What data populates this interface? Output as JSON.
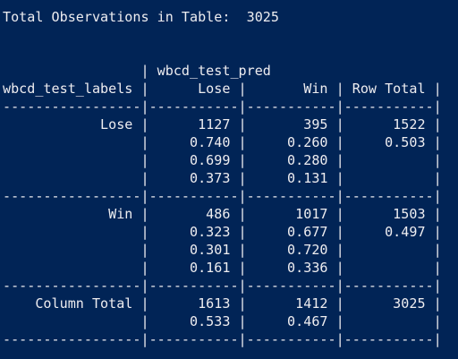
{
  "console": {
    "lines": [
      "Total Observations in Table:  3025",
      "",
      "",
      "                 | wbcd_test_pred",
      "wbcd_test_labels |      Lose |       Win | Row Total |",
      "-----------------|-----------|-----------|-----------|",
      "            Lose |      1127 |       395 |      1522 |",
      "                 |     0.740 |     0.260 |     0.503 |",
      "                 |     0.699 |     0.280 |           |",
      "                 |     0.373 |     0.131 |           |",
      "-----------------|-----------|-----------|-----------|",
      "             Win |       486 |      1017 |      1503 |",
      "                 |     0.323 |     0.677 |     0.497 |",
      "                 |     0.301 |     0.720 |           |",
      "                 |     0.161 |     0.336 |           |",
      "-----------------|-----------|-----------|-----------|",
      "    Column Total |      1613 |      1412 |      3025 |",
      "                 |     0.533 |     0.467 |           |",
      "-----------------|-----------|-----------|-----------|"
    ]
  }
}
